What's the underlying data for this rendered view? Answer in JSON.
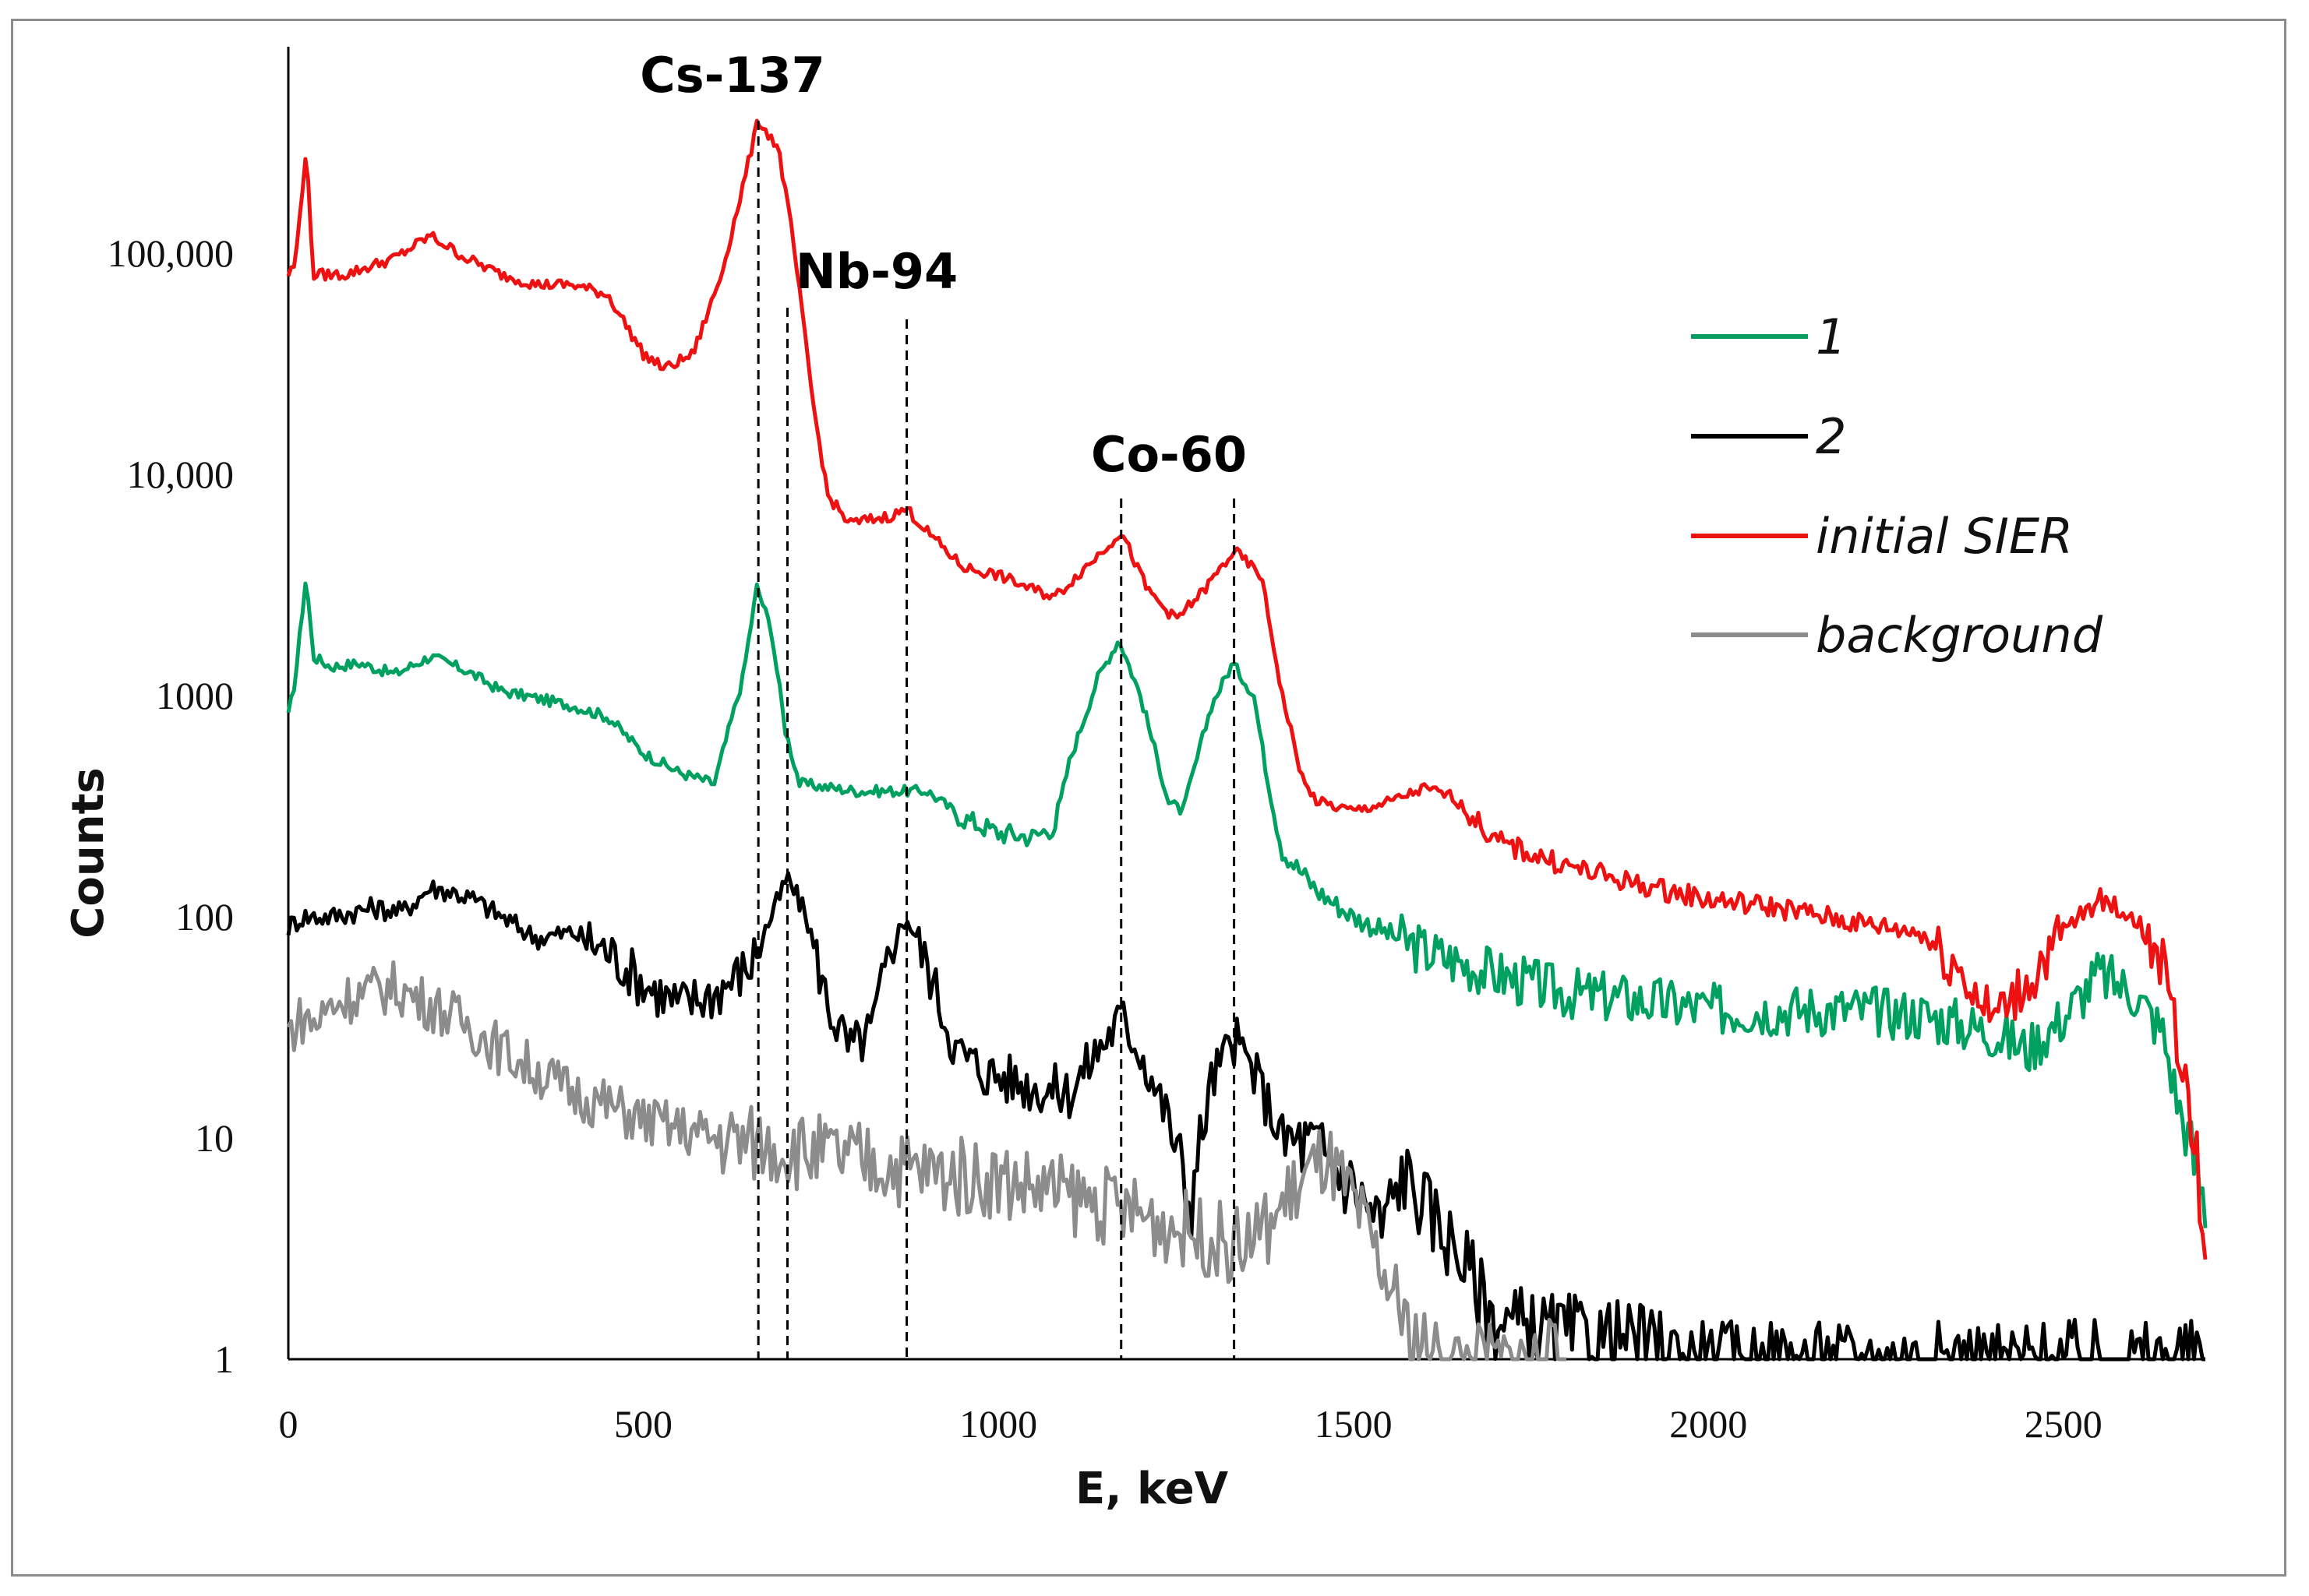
{
  "chart_data": {
    "type": "line",
    "xlabel": "E, keV",
    "ylabel": "Counts",
    "yscale": "log",
    "xlim": [
      0,
      2700
    ],
    "ylim": [
      1,
      1000000
    ],
    "xticks": [
      0,
      500,
      1000,
      1500,
      2000,
      2500
    ],
    "xtick_labels": [
      "0",
      "500",
      "1000",
      "1500",
      "2000",
      "2500"
    ],
    "yticks": [
      1,
      10,
      100,
      1000,
      10000,
      100000
    ],
    "ytick_labels": [
      "1",
      "10",
      "100",
      "1000",
      "10,000",
      "100,000"
    ],
    "grid": false,
    "legend_position": "right",
    "annotations": [
      {
        "label": "Cs-137",
        "energies": [
          662
        ]
      },
      {
        "label": "Nb-94",
        "energies": [
          703,
          871
        ]
      },
      {
        "label": "Co-60",
        "energies": [
          1173,
          1332
        ]
      }
    ],
    "series": [
      {
        "name": "1",
        "color": "#00a060",
        "points": [
          [
            0,
            800
          ],
          [
            10,
            1200
          ],
          [
            25,
            3500
          ],
          [
            35,
            1500
          ],
          [
            60,
            1350
          ],
          [
            100,
            1400
          ],
          [
            150,
            1250
          ],
          [
            200,
            1500
          ],
          [
            250,
            1300
          ],
          [
            300,
            1050
          ],
          [
            400,
            900
          ],
          [
            450,
            800
          ],
          [
            500,
            550
          ],
          [
            550,
            450
          ],
          [
            600,
            400
          ],
          [
            640,
            1200
          ],
          [
            660,
            3100
          ],
          [
            680,
            2000
          ],
          [
            700,
            700
          ],
          [
            720,
            400
          ],
          [
            800,
            370
          ],
          [
            900,
            370
          ],
          [
            950,
            280
          ],
          [
            1000,
            240
          ],
          [
            1050,
            230
          ],
          [
            1080,
            260
          ],
          [
            1100,
            500
          ],
          [
            1140,
            1200
          ],
          [
            1170,
            1800
          ],
          [
            1200,
            1000
          ],
          [
            1240,
            330
          ],
          [
            1260,
            300
          ],
          [
            1300,
            900
          ],
          [
            1330,
            1400
          ],
          [
            1360,
            1000
          ],
          [
            1380,
            400
          ],
          [
            1400,
            200
          ],
          [
            1450,
            130
          ],
          [
            1500,
            100
          ],
          [
            1600,
            70
          ],
          [
            1700,
            55
          ],
          [
            1800,
            45
          ],
          [
            1900,
            42
          ],
          [
            2000,
            38
          ],
          [
            2100,
            38
          ],
          [
            2200,
            38
          ],
          [
            2300,
            36
          ],
          [
            2400,
            30
          ],
          [
            2450,
            25
          ],
          [
            2500,
            35
          ],
          [
            2550,
            55
          ],
          [
            2600,
            45
          ],
          [
            2640,
            30
          ],
          [
            2660,
            15
          ],
          [
            2700,
            5
          ]
        ]
      },
      {
        "name": "2",
        "color": "#000000",
        "points": [
          [
            0,
            90
          ],
          [
            20,
            100
          ],
          [
            60,
            100
          ],
          [
            120,
            110
          ],
          [
            160,
            105
          ],
          [
            200,
            135
          ],
          [
            230,
            130
          ],
          [
            260,
            120
          ],
          [
            300,
            100
          ],
          [
            350,
            80
          ],
          [
            400,
            85
          ],
          [
            450,
            70
          ],
          [
            500,
            50
          ],
          [
            550,
            40
          ],
          [
            600,
            45
          ],
          [
            650,
            60
          ],
          [
            680,
            100
          ],
          [
            703,
            150
          ],
          [
            730,
            100
          ],
          [
            760,
            40
          ],
          [
            790,
            25
          ],
          [
            820,
            30
          ],
          [
            850,
            75
          ],
          [
            871,
            100
          ],
          [
            900,
            60
          ],
          [
            940,
            25
          ],
          [
            980,
            20
          ],
          [
            1050,
            17
          ],
          [
            1100,
            16
          ],
          [
            1140,
            25
          ],
          [
            1173,
            35
          ],
          [
            1200,
            25
          ],
          [
            1240,
            12
          ],
          [
            1270,
            5
          ],
          [
            1300,
            18
          ],
          [
            1332,
            28
          ],
          [
            1360,
            20
          ],
          [
            1400,
            10
          ],
          [
            1450,
            9
          ],
          [
            1500,
            6
          ],
          [
            1540,
            4
          ],
          [
            1570,
            7
          ],
          [
            1600,
            5
          ],
          [
            1650,
            3
          ],
          [
            1700,
            1.5
          ],
          [
            1800,
            1.3
          ],
          [
            1900,
            1.2
          ],
          [
            2000,
            1
          ],
          [
            2700,
            1
          ]
        ]
      },
      {
        "name": "initial SIER",
        "color": "#ee1111",
        "points": [
          [
            0,
            80000
          ],
          [
            10,
            90000
          ],
          [
            25,
            300000
          ],
          [
            35,
            80000
          ],
          [
            80,
            80000
          ],
          [
            150,
            95000
          ],
          [
            200,
            120000
          ],
          [
            250,
            95000
          ],
          [
            300,
            80000
          ],
          [
            350,
            72000
          ],
          [
            400,
            72000
          ],
          [
            450,
            65000
          ],
          [
            500,
            35000
          ],
          [
            530,
            30000
          ],
          [
            570,
            35000
          ],
          [
            610,
            80000
          ],
          [
            640,
            200000
          ],
          [
            662,
            400000
          ],
          [
            690,
            300000
          ],
          [
            710,
            120000
          ],
          [
            740,
            20000
          ],
          [
            760,
            8000
          ],
          [
            790,
            6000
          ],
          [
            850,
            6500
          ],
          [
            871,
            7000
          ],
          [
            900,
            5500
          ],
          [
            950,
            3800
          ],
          [
            1000,
            3500
          ],
          [
            1050,
            3000
          ],
          [
            1080,
            2800
          ],
          [
            1130,
            4000
          ],
          [
            1173,
            5500
          ],
          [
            1210,
            3000
          ],
          [
            1250,
            2200
          ],
          [
            1290,
            3000
          ],
          [
            1332,
            4500
          ],
          [
            1370,
            3500
          ],
          [
            1400,
            1000
          ],
          [
            1430,
            400
          ],
          [
            1450,
            330
          ],
          [
            1500,
            300
          ],
          [
            1550,
            330
          ],
          [
            1600,
            380
          ],
          [
            1640,
            350
          ],
          [
            1700,
            220
          ],
          [
            1800,
            170
          ],
          [
            1900,
            140
          ],
          [
            2000,
            120
          ],
          [
            2100,
            110
          ],
          [
            2200,
            95
          ],
          [
            2300,
            85
          ],
          [
            2350,
            60
          ],
          [
            2400,
            35
          ],
          [
            2450,
            50
          ],
          [
            2500,
            85
          ],
          [
            2550,
            120
          ],
          [
            2600,
            100
          ],
          [
            2640,
            60
          ],
          [
            2670,
            20
          ],
          [
            2700,
            4
          ]
        ]
      },
      {
        "name": "background",
        "color": "#8c8c8c",
        "points": [
          [
            0,
            30
          ],
          [
            20,
            35
          ],
          [
            40,
            33
          ],
          [
            60,
            40
          ],
          [
            100,
            45
          ],
          [
            150,
            48
          ],
          [
            200,
            40
          ],
          [
            250,
            33
          ],
          [
            300,
            25
          ],
          [
            350,
            20
          ],
          [
            400,
            16
          ],
          [
            450,
            14
          ],
          [
            500,
            12
          ],
          [
            550,
            11
          ],
          [
            600,
            10
          ],
          [
            700,
            9
          ],
          [
            800,
            8
          ],
          [
            900,
            7
          ],
          [
            1000,
            6.5
          ],
          [
            1100,
            5.5
          ],
          [
            1200,
            4.5
          ],
          [
            1300,
            3.5
          ],
          [
            1340,
            3.2
          ],
          [
            1380,
            4
          ],
          [
            1420,
            6
          ],
          [
            1460,
            8
          ],
          [
            1500,
            5
          ],
          [
            1540,
            2.5
          ],
          [
            1580,
            1.3
          ],
          [
            1620,
            1
          ],
          [
            1800,
            1
          ]
        ]
      }
    ]
  }
}
